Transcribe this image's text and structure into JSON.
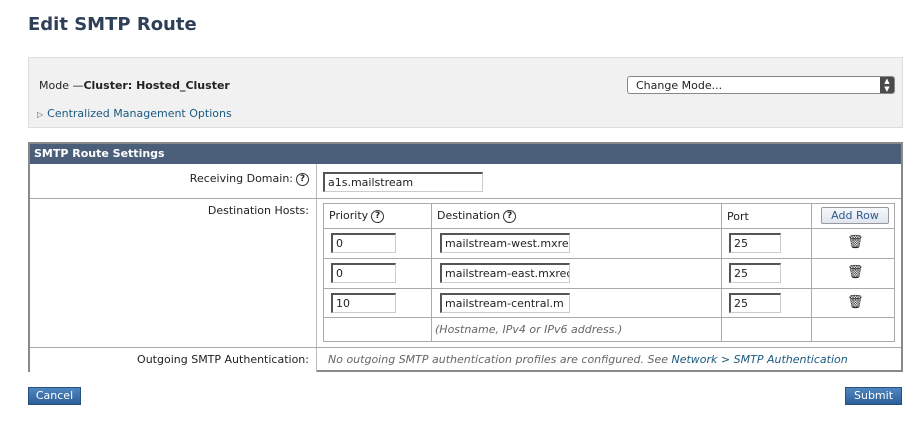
{
  "page": {
    "title": "Edit SMTP Route"
  },
  "mode": {
    "label": "Mode —",
    "value": "Cluster: Hosted_Cluster",
    "change_mode": "Change Mode...",
    "centralized_options": "Centralized Management Options"
  },
  "settings": {
    "header": "SMTP Route Settings",
    "receiving_domain": {
      "label": "Receiving Domain:",
      "value": "a1s.mailstream"
    },
    "destination_hosts": {
      "label": "Destination Hosts:",
      "columns": {
        "priority": "Priority",
        "destination": "Destination",
        "port": "Port",
        "add_row": "Add Row"
      },
      "rows": [
        {
          "priority": "0",
          "destination": "mailstream-west.mxre",
          "port": "25"
        },
        {
          "priority": "0",
          "destination": "mailstream-east.mxrec",
          "port": "25"
        },
        {
          "priority": "10",
          "destination": "mailstream-central.m",
          "port": "25"
        }
      ],
      "hint": "(Hostname, IPv4 or IPv6 address.)"
    },
    "outgoing_auth": {
      "label": "Outgoing SMTP Authentication:",
      "message": "No outgoing SMTP authentication profiles are configured. See",
      "link": "Network > SMTP Authentication"
    }
  },
  "buttons": {
    "cancel": "Cancel",
    "submit": "Submit"
  }
}
